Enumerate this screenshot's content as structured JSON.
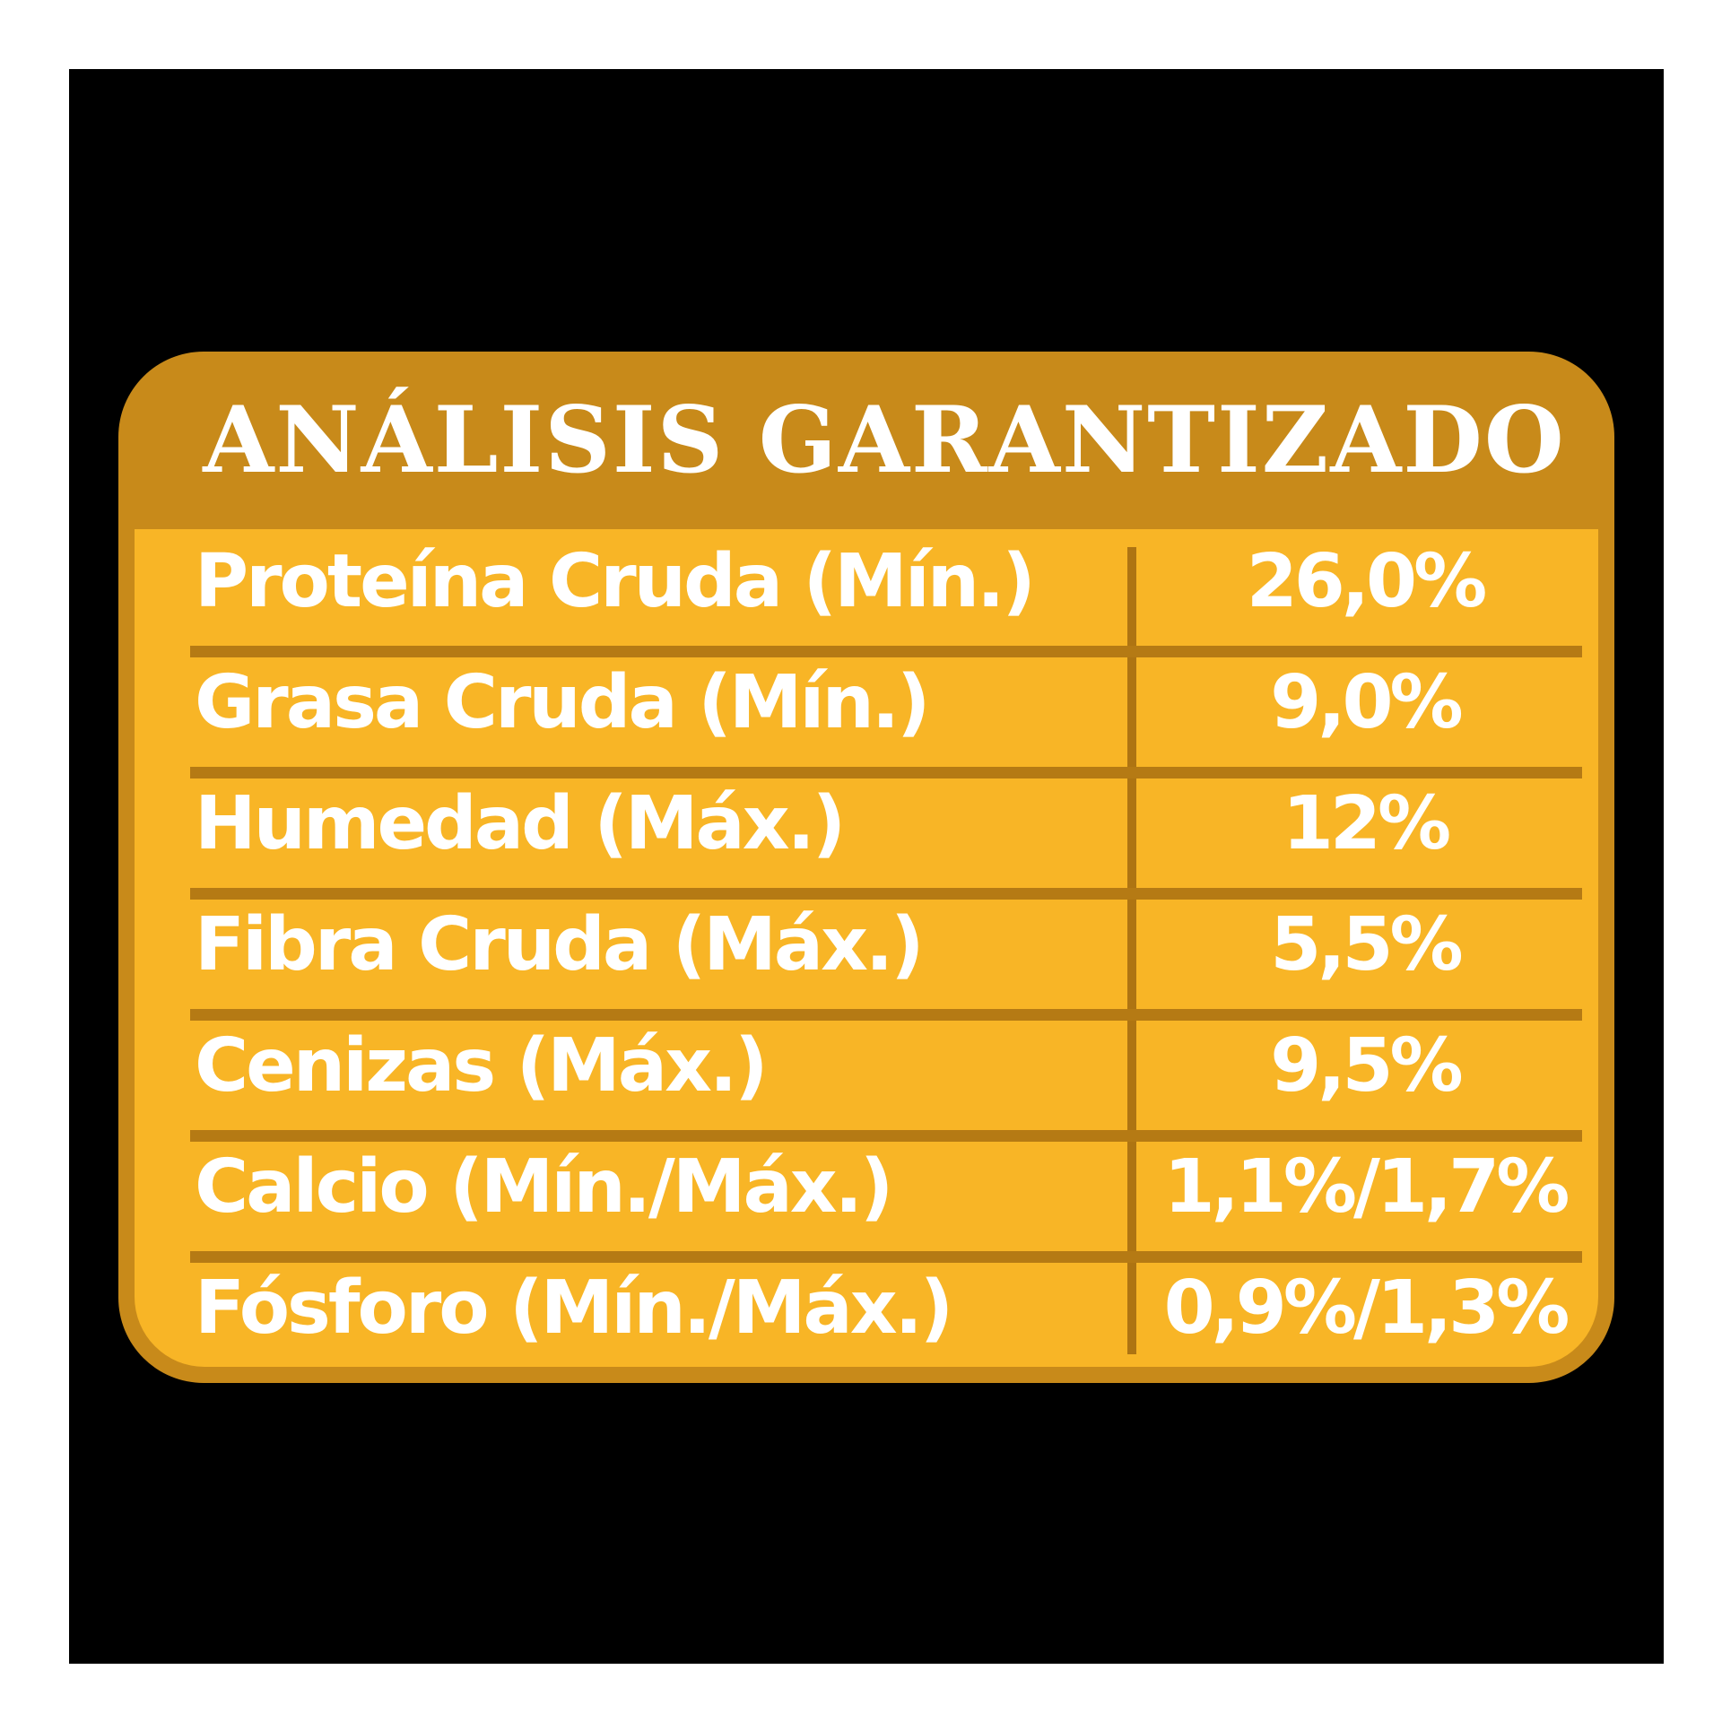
{
  "title": "ANÁLISIS GARANTIZADO",
  "rows": [
    {
      "label": "Proteína Cruda (Mín.)",
      "value": "26,0%"
    },
    {
      "label": "Grasa Cruda (Mín.)",
      "value": "9,0%"
    },
    {
      "label": "Humedad (Máx.)",
      "value": "12%"
    },
    {
      "label": "Fibra Cruda (Máx.)",
      "value": "5,5%"
    },
    {
      "label": "Cenizas (Máx.)",
      "value": "9,5%"
    },
    {
      "label": "Calcio (Mín./Máx.)",
      "value": "1,1%/1,7%"
    },
    {
      "label": "Fósforo (Mín./Máx.)",
      "value": "0,9%/1,3%"
    }
  ],
  "colors": {
    "background": "#000000",
    "card_header": "#c88a1a",
    "table_fill": "#f8b526",
    "divider": "#b57a14",
    "text": "#ffffff"
  }
}
